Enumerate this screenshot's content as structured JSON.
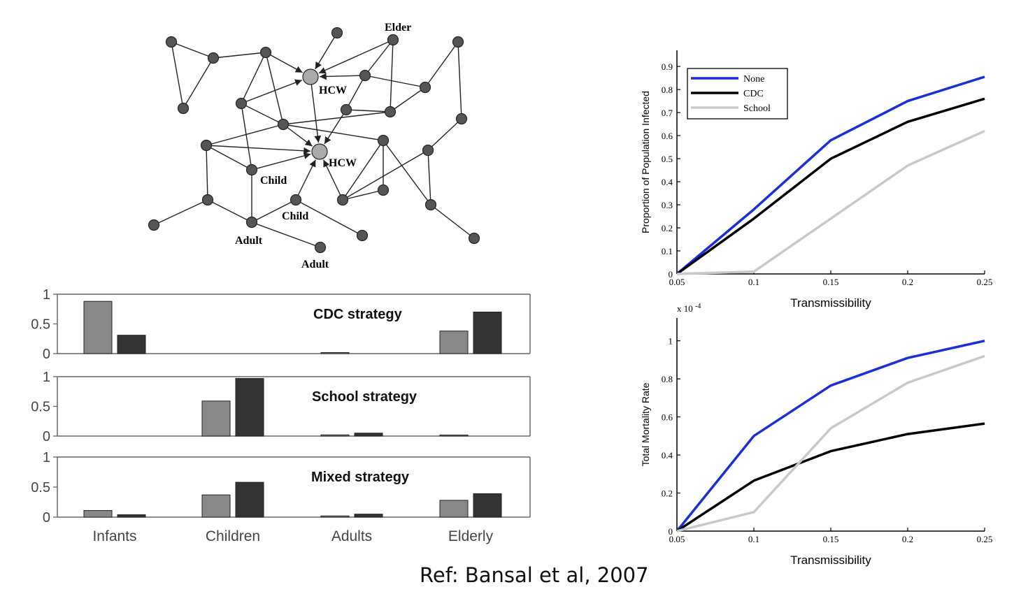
{
  "network": {
    "labels": {
      "elder": "Elder",
      "hcw1": "HCW",
      "hcw2": "HCW",
      "child1": "Child",
      "child2": "Child",
      "adult1": "Adult",
      "adult2": "Adult"
    },
    "node_color": "#555555",
    "hcw_color": "#aaaaaa"
  },
  "chart_data": [
    {
      "type": "bar",
      "title": "CDC strategy",
      "categories": [
        "Infants",
        "Children",
        "Adults",
        "Elderly"
      ],
      "series": [
        {
          "values": [
            0.88,
            0.0,
            0.005,
            0.38
          ],
          "color": "#888888"
        },
        {
          "values": [
            0.31,
            0.0,
            0.0,
            0.7
          ],
          "color": "#333333"
        }
      ],
      "ylim": [
        0,
        1
      ],
      "yticks": [
        "0",
        "0.5",
        "1"
      ]
    },
    {
      "type": "bar",
      "title": "School strategy",
      "categories": [
        "Infants",
        "Children",
        "Adults",
        "Elderly"
      ],
      "series": [
        {
          "values": [
            0.0,
            0.59,
            0.02,
            0.01
          ],
          "color": "#888888"
        },
        {
          "values": [
            0.0,
            0.97,
            0.05,
            0.0
          ],
          "color": "#333333"
        }
      ],
      "ylim": [
        0,
        1
      ],
      "yticks": [
        "0",
        "0.5",
        "1"
      ]
    },
    {
      "type": "bar",
      "title": "Mixed strategy",
      "categories": [
        "Infants",
        "Children",
        "Adults",
        "Elderly"
      ],
      "series": [
        {
          "values": [
            0.11,
            0.37,
            0.02,
            0.28
          ],
          "color": "#888888"
        },
        {
          "values": [
            0.04,
            0.58,
            0.05,
            0.39
          ],
          "color": "#333333"
        }
      ],
      "ylim": [
        0,
        1
      ],
      "yticks": [
        "0",
        "0.5",
        "1"
      ]
    },
    {
      "type": "line",
      "xlabel": "Transmissibility",
      "ylabel": "Proportion of Population Infected",
      "x": [
        0.05,
        0.1,
        0.15,
        0.2,
        0.25
      ],
      "xticks": [
        "0.05",
        "0.1",
        "0.15",
        "0.2",
        "0.25"
      ],
      "yticks": [
        "0",
        "0.1",
        "0.2",
        "0.3",
        "0.4",
        "0.5",
        "0.6",
        "0.7",
        "0.8",
        "0.9"
      ],
      "ylim": [
        0,
        0.97
      ],
      "legend": "top-left",
      "series": [
        {
          "name": "None",
          "values": [
            0.0,
            0.28,
            0.58,
            0.75,
            0.855
          ],
          "color": "#1a2fd6"
        },
        {
          "name": "CDC",
          "values": [
            0.0,
            0.24,
            0.5,
            0.66,
            0.76
          ],
          "color": "#000000"
        },
        {
          "name": "School",
          "values": [
            0.0,
            0.01,
            0.24,
            0.47,
            0.62
          ],
          "color": "#c8c8c8"
        }
      ]
    },
    {
      "type": "line",
      "xlabel": "Transmissibility",
      "ylabel": "Total Mortality Rate",
      "multiplier": "x 10",
      "multiplier_exp": "-4",
      "x": [
        0.05,
        0.1,
        0.15,
        0.2,
        0.25
      ],
      "xticks": [
        "0.05",
        "0.1",
        "0.15",
        "0.2",
        "0.25"
      ],
      "yticks": [
        "0",
        "0.2",
        "0.4",
        "0.6",
        "0.8",
        "1"
      ],
      "ylim": [
        0,
        1.12
      ],
      "series": [
        {
          "values": [
            0.0,
            0.5,
            0.765,
            0.91,
            1.0
          ],
          "color": "#1a2fd6"
        },
        {
          "values": [
            0.0,
            0.265,
            0.42,
            0.51,
            0.565
          ],
          "color": "#000000"
        },
        {
          "values": [
            0.0,
            0.1,
            0.54,
            0.78,
            0.92
          ],
          "color": "#c8c8c8"
        }
      ]
    }
  ],
  "reference": "Ref: Bansal et al, 2007"
}
